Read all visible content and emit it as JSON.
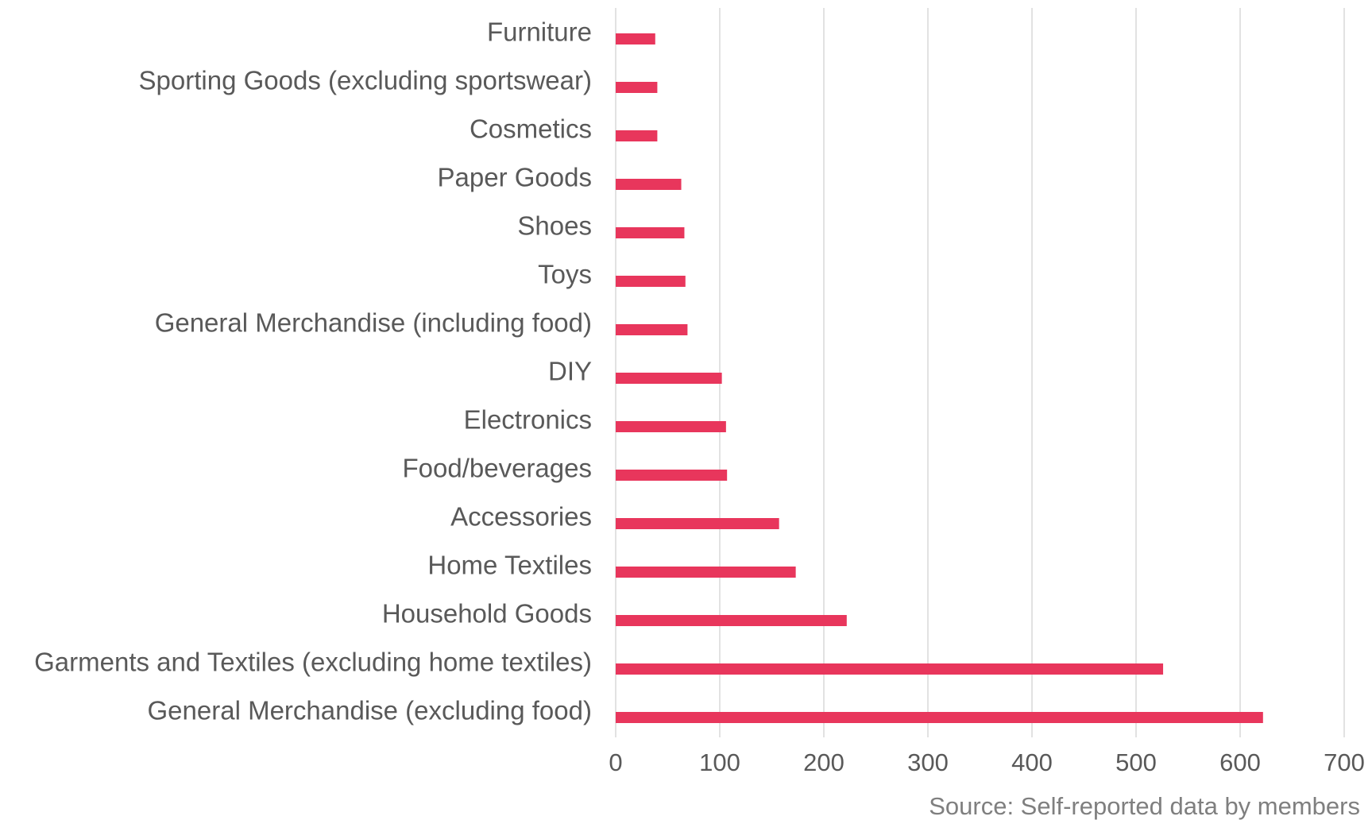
{
  "chart_data": {
    "type": "bar",
    "orientation": "horizontal",
    "categories": [
      "Furniture",
      "Sporting Goods (excluding sportswear)",
      "Cosmetics",
      "Paper Goods",
      "Shoes",
      "Toys",
      "General Merchandise (including food)",
      "DIY",
      "Electronics",
      "Food/beverages",
      "Accessories",
      "Home Textiles",
      "Household Goods",
      "Garments and Textiles (excluding home textiles)",
      "General Merchandise (excluding food)"
    ],
    "values": [
      38,
      40,
      40,
      63,
      66,
      67,
      69,
      102,
      106,
      107,
      157,
      173,
      222,
      526,
      622
    ],
    "xlim": [
      0,
      700
    ],
    "xticks": [
      "0",
      "100",
      "200",
      "300",
      "400",
      "500",
      "600",
      "700"
    ],
    "grid": true,
    "bar_color": "#e8365c",
    "source": "Source: Self-reported data by members"
  }
}
